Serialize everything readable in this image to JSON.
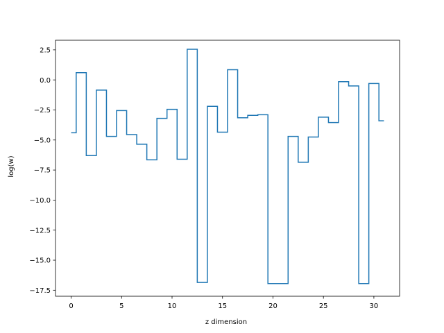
{
  "chart_data": {
    "type": "line",
    "drawstyle": "steps-mid",
    "xlabel": "z dimension",
    "ylabel": "log(w)",
    "xlim": [
      -1.55,
      32.55
    ],
    "ylim": [
      -18.0,
      3.3
    ],
    "x_ticks": [
      0,
      5,
      10,
      15,
      20,
      25,
      30
    ],
    "y_ticks": [
      2.5,
      0.0,
      -2.5,
      -5.0,
      -7.5,
      -10.0,
      -12.5,
      -15.0,
      -17.5
    ],
    "x_tick_labels": [
      "0",
      "5",
      "10",
      "15",
      "20",
      "25",
      "30"
    ],
    "y_tick_labels": [
      "2.5",
      "0.0",
      "−2.5",
      "−5.0",
      "−7.5",
      "−10.0",
      "−12.5",
      "−15.0",
      "−17.5"
    ],
    "grid": false,
    "legend": "none",
    "series": [
      {
        "color": "#1f77b4",
        "x": [
          0,
          1,
          2,
          3,
          4,
          5,
          6,
          7,
          8,
          9,
          10,
          11,
          12,
          13,
          14,
          15,
          16,
          17,
          18,
          19,
          20,
          21,
          22,
          23,
          24,
          25,
          26,
          27,
          28,
          29,
          30,
          31
        ],
        "values": [
          -4.4,
          0.6,
          -6.3,
          -0.85,
          -4.7,
          -2.55,
          -4.55,
          -5.35,
          -6.65,
          -3.2,
          -2.45,
          -6.6,
          2.55,
          -16.85,
          -2.2,
          -4.35,
          0.85,
          -3.15,
          -2.95,
          -2.9,
          -16.95,
          -16.95,
          -4.7,
          -6.85,
          -4.75,
          -3.1,
          -3.55,
          -0.15,
          -0.5,
          -16.95,
          -0.3,
          -3.4
        ]
      }
    ]
  }
}
